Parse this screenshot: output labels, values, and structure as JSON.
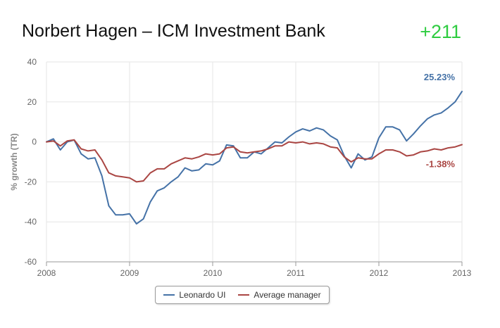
{
  "header": {
    "title": "Norbert Hagen – ICM Investment Bank",
    "score": "+211"
  },
  "colors": {
    "leonardo": "#4572a7",
    "average": "#aa4643",
    "score": "#2ecc40"
  },
  "chart_data": {
    "type": "line",
    "title": "Norbert Hagen – ICM Investment Bank",
    "xlabel": "",
    "ylabel": "% growth (TR)",
    "xlim": [
      2008,
      2013
    ],
    "ylim": [
      -60,
      40
    ],
    "x_ticks": [
      "2008",
      "2009",
      "2010",
      "2011",
      "2012",
      "2013"
    ],
    "y_ticks": [
      "40",
      "20",
      "0",
      "-20",
      "-40",
      "-60"
    ],
    "grid": true,
    "legend_position": "bottom-center",
    "series": [
      {
        "name": "Leonardo UI",
        "end_label": "25.23%",
        "x": [
          2008.0,
          2008.083,
          2008.167,
          2008.25,
          2008.333,
          2008.417,
          2008.5,
          2008.583,
          2008.667,
          2008.75,
          2008.833,
          2008.917,
          2009.0,
          2009.083,
          2009.167,
          2009.25,
          2009.333,
          2009.417,
          2009.5,
          2009.583,
          2009.667,
          2009.75,
          2009.833,
          2009.917,
          2010.0,
          2010.083,
          2010.167,
          2010.25,
          2010.333,
          2010.417,
          2010.5,
          2010.583,
          2010.667,
          2010.75,
          2010.833,
          2010.917,
          2011.0,
          2011.083,
          2011.167,
          2011.25,
          2011.333,
          2011.417,
          2011.5,
          2011.583,
          2011.667,
          2011.75,
          2011.833,
          2011.917,
          2012.0,
          2012.083,
          2012.167,
          2012.25,
          2012.333,
          2012.417,
          2012.5,
          2012.583,
          2012.667,
          2012.75,
          2012.833,
          2012.917,
          2013.0
        ],
        "y": [
          0,
          1.5,
          -4,
          0,
          1,
          -6,
          -8.5,
          -8,
          -17,
          -32,
          -36.5,
          -36.5,
          -36,
          -41,
          -38.5,
          -30,
          -24.5,
          -23,
          -20,
          -17.5,
          -13,
          -14.5,
          -14,
          -11,
          -11.5,
          -9.5,
          -1.5,
          -2,
          -8,
          -8,
          -5,
          -6,
          -3,
          0,
          -0.5,
          2.5,
          5,
          6.5,
          5.5,
          7,
          6,
          3,
          1,
          -7,
          -13,
          -6,
          -9,
          -7.5,
          2,
          7.5,
          7.5,
          6,
          0.5,
          4,
          8,
          11.5,
          13.5,
          14.5,
          17,
          20,
          25.23
        ]
      },
      {
        "name": "Average manager",
        "end_label": "-1.38%",
        "x": [
          2008.0,
          2008.083,
          2008.167,
          2008.25,
          2008.333,
          2008.417,
          2008.5,
          2008.583,
          2008.667,
          2008.75,
          2008.833,
          2008.917,
          2009.0,
          2009.083,
          2009.167,
          2009.25,
          2009.333,
          2009.417,
          2009.5,
          2009.583,
          2009.667,
          2009.75,
          2009.833,
          2009.917,
          2010.0,
          2010.083,
          2010.167,
          2010.25,
          2010.333,
          2010.417,
          2010.5,
          2010.583,
          2010.667,
          2010.75,
          2010.833,
          2010.917,
          2011.0,
          2011.083,
          2011.167,
          2011.25,
          2011.333,
          2011.417,
          2011.5,
          2011.583,
          2011.667,
          2011.75,
          2011.833,
          2011.917,
          2012.0,
          2012.083,
          2012.167,
          2012.25,
          2012.333,
          2012.417,
          2012.5,
          2012.583,
          2012.667,
          2012.75,
          2012.833,
          2012.917,
          2013.0
        ],
        "y": [
          0,
          0.5,
          -2,
          0.5,
          1,
          -3.5,
          -4.5,
          -4,
          -9,
          -15.5,
          -17,
          -17.5,
          -18,
          -20,
          -19.5,
          -15.5,
          -13.5,
          -13.5,
          -11,
          -9.5,
          -8,
          -8.5,
          -7.5,
          -6,
          -6.5,
          -6,
          -3,
          -2.5,
          -5,
          -5.5,
          -5,
          -4.5,
          -3.5,
          -2,
          -2,
          0,
          -0.5,
          0,
          -1,
          -0.5,
          -1,
          -2.5,
          -3,
          -7.5,
          -10,
          -8,
          -8.5,
          -8.5,
          -6,
          -4,
          -4,
          -5,
          -7,
          -6.5,
          -5,
          -4.5,
          -3.5,
          -4,
          -3,
          -2.5,
          -1.38
        ]
      }
    ]
  }
}
